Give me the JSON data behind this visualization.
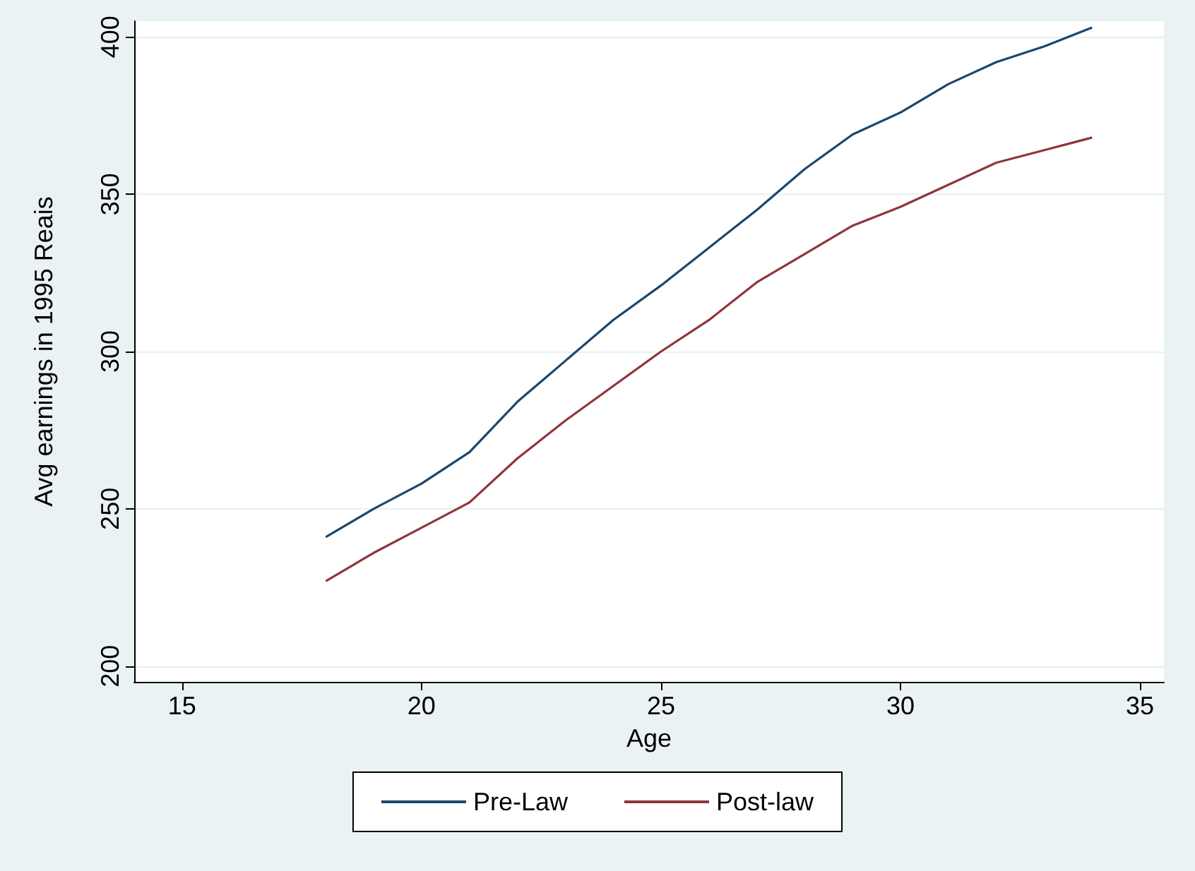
{
  "chart_data": {
    "type": "line",
    "xlabel": "Age",
    "ylabel": "Avg earnings in 1995 Reais",
    "x": [
      18,
      19,
      20,
      21,
      22,
      23,
      24,
      25,
      26,
      27,
      28,
      29,
      30,
      31,
      32,
      33,
      34
    ],
    "series": [
      {
        "name": "Pre-Law",
        "color": "#1a476f",
        "values": [
          241,
          250,
          258,
          268,
          284,
          297,
          310,
          321,
          333,
          345,
          358,
          369,
          376,
          385,
          392,
          397,
          403
        ]
      },
      {
        "name": "Post-law",
        "color": "#90353b",
        "values": [
          227,
          236,
          244,
          252,
          266,
          278,
          289,
          300,
          310,
          322,
          331,
          340,
          346,
          353,
          360,
          364,
          368
        ]
      }
    ],
    "xlim": [
      14,
      35.5
    ],
    "xticks": [
      15,
      20,
      25,
      30,
      35
    ],
    "ylim": [
      195,
      405
    ],
    "yticks": [
      200,
      250,
      300,
      350,
      400
    ],
    "grid": "y",
    "legend": "bottom",
    "marker": "none",
    "line_style": "solid"
  }
}
